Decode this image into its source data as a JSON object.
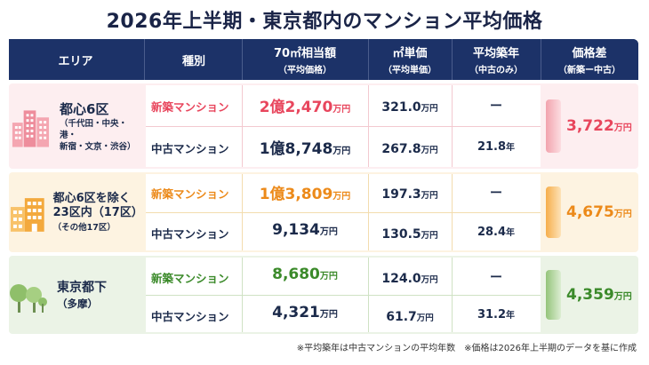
{
  "title": "2026年上半期・東京都内のマンション平均価格",
  "header": {
    "area": "エリア",
    "type": "種別",
    "price": "70㎡相当額",
    "price_sub": "（平均価格）",
    "unit_price": "㎡単価",
    "unit_price_sub": "（平均単価）",
    "age": "平均築年",
    "age_sub": "（中古のみ）",
    "diff": "価格差",
    "diff_sub": "（新築ー中古）"
  },
  "groups": [
    {
      "area": "都心6区",
      "area_sub1": "（千代田・中央・港・",
      "area_sub2": "新宿・文京・渋谷）",
      "new_label": "新築マンション",
      "new_price": "2億2,470",
      "new_unit_price": "321.0",
      "new_age": "ー",
      "used_label": "中古マンション",
      "used_price": "1億8,748",
      "used_unit_price": "267.8",
      "used_age": "21.8",
      "diff": "3,722",
      "icon": "city-buildings-icon",
      "accent": "#e8465d"
    },
    {
      "area_line1": "都心6区を除く",
      "area_line2": "23区内（17区）",
      "area_sub": "（その他17区）",
      "new_label": "新築マンション",
      "new_price": "1億3,809",
      "new_unit_price": "197.3",
      "new_age": "ー",
      "used_label": "中古マンション",
      "used_price": "9,134",
      "used_unit_price": "130.5",
      "used_age": "28.4",
      "diff": "4,675",
      "icon": "residential-buildings-icon",
      "accent": "#ec8a1a"
    },
    {
      "area": "東京都下",
      "area_sub": "（多摩）",
      "new_label": "新築マンション",
      "new_price": "8,680",
      "new_unit_price": "124.0",
      "new_age": "ー",
      "used_label": "中古マンション",
      "used_price": "4,321",
      "used_unit_price": "61.7",
      "used_age": "31.2",
      "diff": "4,359",
      "icon": "trees-icon",
      "accent": "#3b8a2a"
    }
  ],
  "units": {
    "man_yen": "万円",
    "year": "年"
  },
  "note": "※平均築年は中古マンションの平均年数　※価格は2026年上半期のデータを基に作成"
}
